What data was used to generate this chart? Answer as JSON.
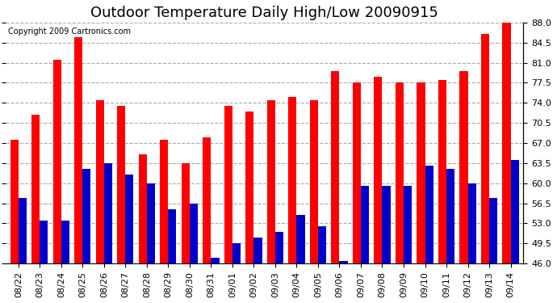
{
  "title": "Outdoor Temperature Daily High/Low 20090915",
  "copyright": "Copyright 2009 Cartronics.com",
  "dates": [
    "08/22",
    "08/23",
    "08/24",
    "08/25",
    "08/26",
    "08/27",
    "08/28",
    "08/29",
    "08/30",
    "08/31",
    "09/01",
    "09/02",
    "09/03",
    "09/04",
    "09/05",
    "09/06",
    "09/07",
    "09/08",
    "09/09",
    "09/10",
    "09/11",
    "09/12",
    "09/13",
    "09/14"
  ],
  "highs": [
    67.5,
    72.0,
    81.5,
    85.5,
    74.5,
    73.5,
    65.0,
    67.5,
    63.5,
    68.0,
    73.5,
    72.5,
    74.5,
    75.0,
    74.5,
    79.5,
    77.5,
    78.5,
    77.5,
    77.5,
    78.0,
    79.5,
    86.0,
    88.0
  ],
  "lows": [
    57.5,
    53.5,
    53.5,
    62.5,
    63.5,
    61.5,
    60.0,
    55.5,
    56.5,
    47.0,
    49.5,
    50.5,
    51.5,
    54.5,
    52.5,
    46.5,
    59.5,
    59.5,
    59.5,
    63.0,
    62.5,
    60.0,
    57.5,
    64.0
  ],
  "high_color": "#ff0000",
  "low_color": "#0000cc",
  "bg_color": "#ffffff",
  "grid_color": "#aaaaaa",
  "ylim_min": 46.0,
  "ylim_max": 88.0,
  "yticks": [
    46.0,
    49.5,
    53.0,
    56.5,
    60.0,
    63.5,
    67.0,
    70.5,
    74.0,
    77.5,
    81.0,
    84.5,
    88.0
  ],
  "bar_width": 0.38,
  "title_fontsize": 13,
  "tick_fontsize": 8
}
